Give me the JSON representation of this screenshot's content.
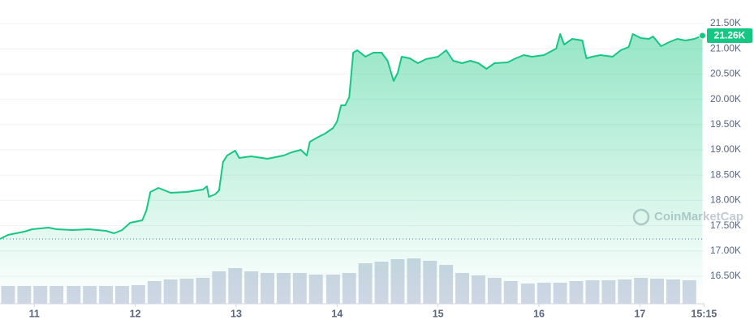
{
  "chart_data": {
    "type": "line",
    "color": "#16c784",
    "grid": true,
    "xlim": [
      10.66,
      17.64
    ],
    "ylim": [
      15955,
      21965
    ],
    "xticks": [
      11,
      12,
      13,
      14,
      15,
      16,
      17,
      {
        "value": 17.635,
        "label": "15:15"
      }
    ],
    "yticks": [
      {
        "value": 21500,
        "label": "21.50K"
      },
      {
        "value": 21000,
        "label": "21.00K"
      },
      {
        "value": 20500,
        "label": "20.50K"
      },
      {
        "value": 20000,
        "label": "20.00K"
      },
      {
        "value": 19500,
        "label": "19.50K"
      },
      {
        "value": 19000,
        "label": "19.00K"
      },
      {
        "value": 18500,
        "label": "18.50K"
      },
      {
        "value": 18000,
        "label": "18.00K"
      },
      {
        "value": 17500,
        "label": "17.50K"
      },
      {
        "value": 17000,
        "label": "17.00K"
      },
      {
        "value": 16500,
        "label": "16.50K"
      }
    ],
    "reference_line": 17237,
    "current_price": {
      "value": 21260,
      "label": "21.26K"
    },
    "watermark": "CoinMarketCap",
    "x": [
      10.66,
      10.74,
      10.9,
      10.98,
      11.14,
      11.22,
      11.38,
      11.54,
      11.71,
      11.79,
      11.87,
      11.95,
      12.07,
      12.11,
      12.15,
      12.23,
      12.35,
      12.51,
      12.67,
      12.71,
      12.73,
      12.79,
      12.83,
      12.87,
      12.91,
      12.99,
      13.03,
      13.15,
      13.31,
      13.47,
      13.55,
      13.64,
      13.7,
      13.73,
      13.8,
      13.88,
      13.96,
      14.0,
      14.04,
      14.08,
      14.12,
      14.16,
      14.2,
      14.28,
      14.36,
      14.44,
      14.5,
      14.56,
      14.6,
      14.64,
      14.72,
      14.8,
      14.88,
      15.0,
      15.08,
      15.15,
      15.24,
      15.32,
      15.4,
      15.48,
      15.56,
      15.69,
      15.77,
      15.85,
      15.93,
      16.05,
      16.17,
      16.21,
      16.25,
      16.33,
      16.43,
      16.47,
      16.53,
      16.61,
      16.73,
      16.81,
      16.89,
      16.93,
      17.01,
      17.09,
      17.13,
      17.21,
      17.29,
      17.37,
      17.45,
      17.54,
      17.62
    ],
    "values": [
      17237,
      17317,
      17381,
      17429,
      17461,
      17429,
      17413,
      17429,
      17397,
      17349,
      17413,
      17558,
      17606,
      17798,
      18167,
      18247,
      18151,
      18167,
      18215,
      18279,
      18070,
      18119,
      18199,
      18760,
      18888,
      18984,
      18840,
      18872,
      18824,
      18888,
      18952,
      19000,
      18888,
      19160,
      19240,
      19320,
      19433,
      19561,
      19881,
      19881,
      20042,
      20923,
      20971,
      20843,
      20923,
      20923,
      20763,
      20362,
      20522,
      20843,
      20811,
      20715,
      20795,
      20843,
      20971,
      20763,
      20715,
      20763,
      20715,
      20603,
      20715,
      20731,
      20811,
      20875,
      20843,
      20875,
      21003,
      21292,
      21083,
      21196,
      21163,
      20811,
      20843,
      20875,
      20843,
      20971,
      21035,
      21292,
      21212,
      21196,
      21244,
      21051,
      21131,
      21196,
      21163,
      21196,
      21260
    ],
    "volume": {
      "y2lim": [
        0,
        100
      ],
      "x": [
        10.74,
        10.9,
        11.06,
        11.22,
        11.39,
        11.55,
        11.71,
        11.87,
        12.03,
        12.19,
        12.35,
        12.51,
        12.67,
        12.83,
        12.99,
        13.15,
        13.31,
        13.47,
        13.63,
        13.79,
        13.96,
        14.12,
        14.28,
        14.44,
        14.6,
        14.76,
        14.92,
        15.08,
        15.24,
        15.4,
        15.56,
        15.72,
        15.89,
        16.05,
        16.21,
        16.37,
        16.53,
        16.69,
        16.85,
        17.01,
        17.17,
        17.33,
        17.49
      ],
      "values": [
        22,
        22,
        22,
        22,
        22,
        22,
        22,
        22,
        23,
        28,
        30,
        31,
        32,
        40,
        44,
        40,
        38,
        38,
        38,
        36,
        36,
        38,
        50,
        52,
        55,
        56,
        53,
        48,
        38,
        35,
        32,
        28,
        25,
        26,
        26,
        28,
        29,
        29,
        30,
        32,
        31,
        30,
        29
      ]
    }
  }
}
